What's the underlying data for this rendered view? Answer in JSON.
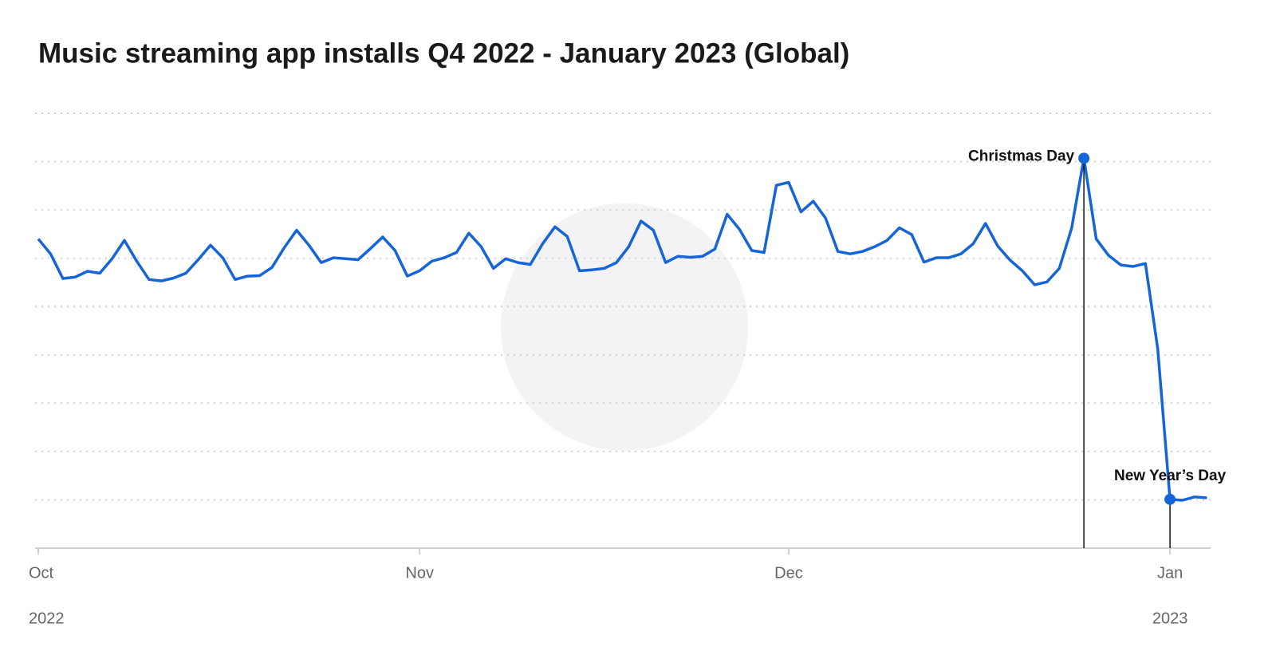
{
  "chart_data": {
    "type": "line",
    "title": "Music streaming app installs Q4 2022 - January 2023 (Global)",
    "x": [
      0,
      1,
      2,
      3,
      4,
      5,
      6,
      7,
      8,
      9,
      10,
      11,
      12,
      13,
      14,
      15,
      16,
      17,
      18,
      19,
      20,
      21,
      22,
      23,
      24,
      25,
      26,
      27,
      28,
      29,
      30,
      31,
      32,
      33,
      34,
      35,
      36,
      37,
      38,
      39,
      40,
      41,
      42,
      43,
      44,
      45,
      46,
      47,
      48,
      49,
      50,
      51,
      52,
      53,
      54,
      55,
      56,
      57,
      58,
      59,
      60,
      61,
      62,
      63,
      64,
      65,
      66,
      67,
      68,
      69,
      70,
      71,
      72,
      73,
      74,
      75,
      76,
      77,
      78,
      79,
      80,
      81,
      82,
      83,
      84,
      85,
      86,
      87,
      88,
      89,
      90,
      91,
      92,
      93,
      94,
      95
    ],
    "series": [
      {
        "color": "#1565d8",
        "values": [
          6.4,
          6.09,
          5.58,
          5.61,
          5.73,
          5.69,
          5.99,
          6.37,
          5.94,
          5.56,
          5.53,
          5.59,
          5.69,
          5.97,
          6.27,
          6.01,
          5.56,
          5.63,
          5.64,
          5.81,
          6.22,
          6.58,
          6.27,
          5.91,
          6.01,
          5.99,
          5.97,
          6.2,
          6.44,
          6.16,
          5.63,
          5.74,
          5.94,
          6.01,
          6.12,
          6.52,
          6.24,
          5.79,
          5.99,
          5.91,
          5.87,
          6.3,
          6.65,
          6.45,
          5.74,
          5.76,
          5.79,
          5.91,
          6.24,
          6.77,
          6.58,
          5.91,
          6.04,
          6.02,
          6.04,
          6.19,
          6.91,
          6.6,
          6.16,
          6.12,
          7.51,
          7.57,
          6.96,
          7.18,
          6.83,
          6.14,
          6.09,
          6.14,
          6.24,
          6.37,
          6.63,
          6.49,
          5.92,
          6.01,
          6.01,
          6.09,
          6.3,
          6.72,
          6.25,
          5.96,
          5.74,
          5.45,
          5.51,
          5.79,
          6.62,
          8.07,
          6.4,
          6.06,
          5.86,
          5.83,
          5.89,
          4.13,
          1.01,
          0.99,
          1.06,
          1.04
        ]
      }
    ],
    "xlim": [
      0,
      95.3
    ],
    "xticks": [
      {
        "value": 0,
        "label": "Oct"
      },
      {
        "value": 31,
        "label": "Nov"
      },
      {
        "value": 61,
        "label": "Dec"
      },
      {
        "value": 92,
        "label": "Jan"
      }
    ],
    "year_labels": [
      {
        "text": "2022",
        "x": 0
      },
      {
        "text": "2023",
        "x": 92
      }
    ],
    "ylim": [
      0,
      9
    ],
    "yticks": [
      1,
      2,
      3,
      4,
      5,
      6,
      7,
      8,
      9
    ],
    "show_ytick_labels": false,
    "grid": true,
    "annotations": [
      {
        "text": "Christmas Day",
        "x": 85
      },
      {
        "text": "New Year’s Day",
        "x": 92
      }
    ]
  }
}
